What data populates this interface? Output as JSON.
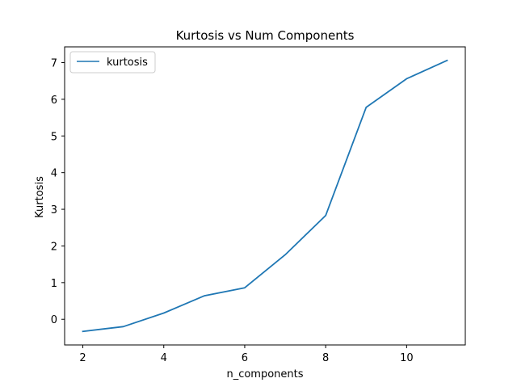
{
  "chart_data": {
    "type": "line",
    "title": "Kurtosis vs Num Components",
    "xlabel": "n_components",
    "ylabel": "Kurtosis",
    "x": [
      2,
      3,
      4,
      5,
      6,
      7,
      8,
      9,
      10,
      11
    ],
    "series": [
      {
        "name": "kurtosis",
        "values": [
          -0.33,
          -0.2,
          0.17,
          0.64,
          0.86,
          1.76,
          2.83,
          5.78,
          6.56,
          7.06
        ],
        "color": "#1f77b4"
      }
    ],
    "xlim": [
      1.55,
      11.45
    ],
    "ylim": [
      -0.7,
      7.43
    ],
    "xticks": [
      2,
      4,
      6,
      8,
      10
    ],
    "yticks": [
      0,
      1,
      2,
      3,
      4,
      5,
      6,
      7
    ],
    "grid": false,
    "legend_position": "upper left"
  }
}
